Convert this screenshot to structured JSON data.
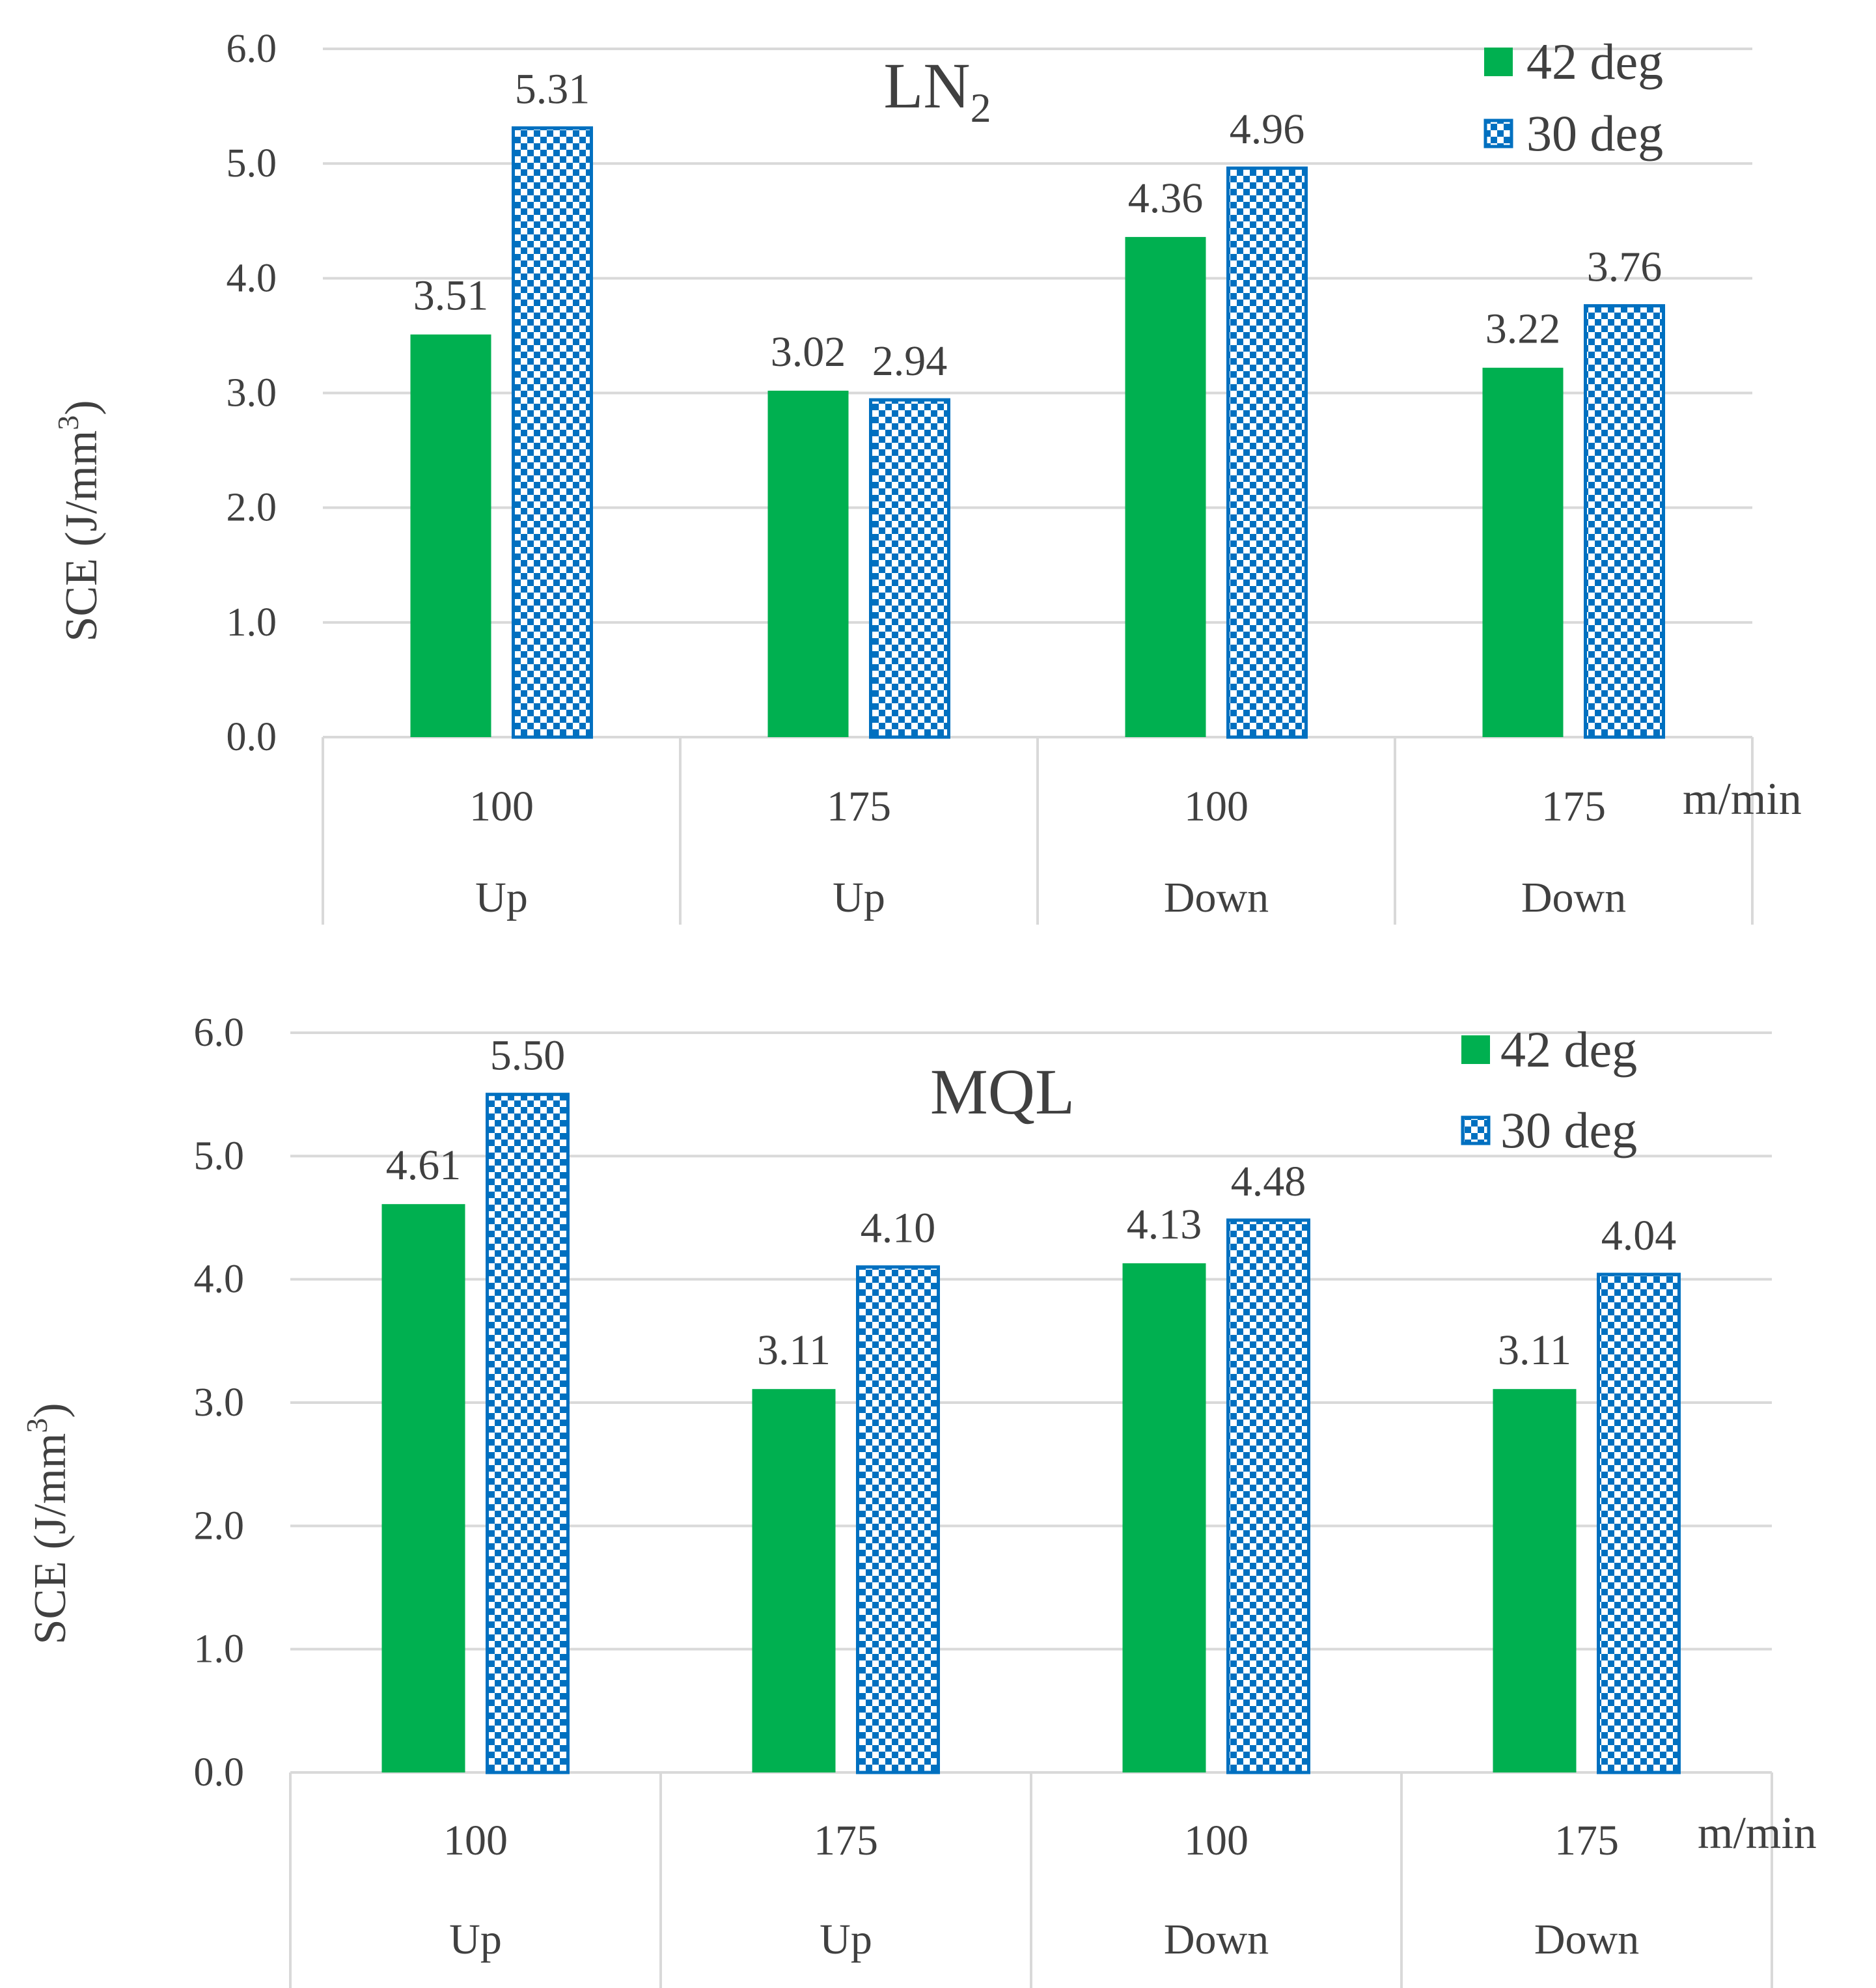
{
  "colors": {
    "series_42": "#00b050",
    "series_30_stroke": "#0070c0",
    "series_30_fill": "#ffffff",
    "grid": "#d9d9d9",
    "text": "#404040"
  },
  "chart_data": [
    {
      "type": "bar",
      "title": "LN",
      "title_subscript": "2",
      "ylabel": "SCE (J/mm",
      "ylabel_superscript": "3",
      "ylabel_suffix": ")",
      "x_unit": "m/min",
      "ylim": [
        0,
        6
      ],
      "yticks": [
        "0.0",
        "1.0",
        "2.0",
        "3.0",
        "4.0",
        "5.0",
        "6.0"
      ],
      "categories": [
        {
          "speed": "100",
          "mode": "Up"
        },
        {
          "speed": "175",
          "mode": "Up"
        },
        {
          "speed": "100",
          "mode": "Down"
        },
        {
          "speed": "175",
          "mode": "Down"
        }
      ],
      "series": [
        {
          "name": "42 deg",
          "values": [
            3.51,
            3.02,
            4.36,
            3.22
          ],
          "labels": [
            "3.51",
            "3.02",
            "4.36",
            "3.22"
          ]
        },
        {
          "name": "30 deg",
          "values": [
            5.31,
            2.94,
            4.96,
            3.76
          ],
          "labels": [
            "5.31",
            "2.94",
            "4.96",
            "3.76"
          ]
        }
      ],
      "legend": "top-right"
    },
    {
      "type": "bar",
      "title": "MQL",
      "title_subscript": "",
      "ylabel": "SCE (J/mm",
      "ylabel_superscript": "3",
      "ylabel_suffix": ")",
      "x_unit": "m/min",
      "ylim": [
        0,
        6
      ],
      "yticks": [
        "0.0",
        "1.0",
        "2.0",
        "3.0",
        "4.0",
        "5.0",
        "6.0"
      ],
      "categories": [
        {
          "speed": "100",
          "mode": "Up"
        },
        {
          "speed": "175",
          "mode": "Up"
        },
        {
          "speed": "100",
          "mode": "Down"
        },
        {
          "speed": "175",
          "mode": "Down"
        }
      ],
      "series": [
        {
          "name": "42 deg",
          "values": [
            4.61,
            3.11,
            4.13,
            3.11
          ],
          "labels": [
            "4.61",
            "3.11",
            "4.13",
            "3.11"
          ]
        },
        {
          "name": "30 deg",
          "values": [
            5.5,
            4.1,
            4.48,
            4.04
          ],
          "labels": [
            "5.50",
            "4.10",
            "4.48",
            "4.04"
          ]
        }
      ],
      "legend": "top-right"
    }
  ]
}
